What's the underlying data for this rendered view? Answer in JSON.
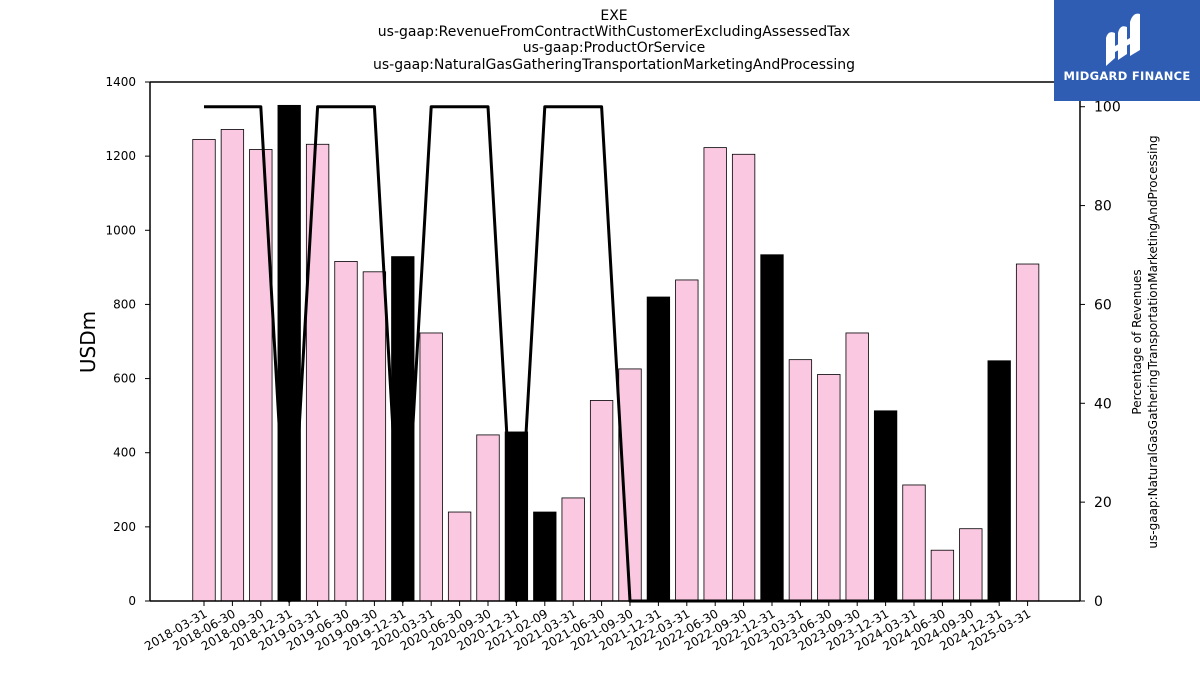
{
  "logo": {
    "text": "MIDGARD FINANCE",
    "color": "#2e5db3"
  },
  "chart_data": {
    "type": "bar",
    "title_lines": [
      "EXE",
      "us-gaap:RevenueFromContractWithCustomerExcludingAssessedTax",
      "us-gaap:ProductOrService",
      "us-gaap:NaturalGasGatheringTransportationMarketingAndProcessing"
    ],
    "ylabel": "USDm",
    "ylabel_right_lines": [
      "Percentage of Revenues",
      "us-gaap:NaturalGasGatheringTransportationMarketingAndProcessing"
    ],
    "ylim": [
      0,
      1400
    ],
    "y_ticks": [
      0,
      200,
      400,
      600,
      800,
      1000,
      1200,
      1400
    ],
    "ylim_right": [
      0,
      105
    ],
    "y_ticks_right": [
      0,
      20,
      40,
      60,
      80,
      100
    ],
    "categories": [
      "2018-03-31",
      "2018-06-30",
      "2018-09-30",
      "2018-12-31",
      "2019-03-31",
      "2019-06-30",
      "2019-09-30",
      "2019-12-31",
      "2020-03-31",
      "2020-06-30",
      "2020-09-30",
      "2020-12-31",
      "2021-02-09",
      "2021-03-31",
      "2021-06-30",
      "2021-09-30",
      "2021-12-31",
      "2022-03-31",
      "2022-06-30",
      "2022-09-30",
      "2022-12-31",
      "2023-03-31",
      "2023-06-30",
      "2023-09-30",
      "2023-12-31",
      "2024-03-31",
      "2024-06-30",
      "2024-09-30",
      "2024-12-31",
      "2025-03-31"
    ],
    "series": [
      {
        "type": "bar",
        "values": [
          1245,
          1272,
          1218,
          1337,
          1232,
          916,
          888,
          929,
          723,
          240,
          448,
          456,
          240,
          278,
          541,
          626,
          820,
          866,
          1223,
          1205,
          934,
          651,
          611,
          723,
          513,
          313,
          137,
          195,
          648,
          909
        ],
        "colors": [
          "#fbc8e2",
          "#fbc8e2",
          "#fbc8e2",
          "#000000",
          "#fbc8e2",
          "#fbc8e2",
          "#fbc8e2",
          "#000000",
          "#fbc8e2",
          "#fbc8e2",
          "#fbc8e2",
          "#000000",
          "#000000",
          "#fbc8e2",
          "#fbc8e2",
          "#fbc8e2",
          "#000000",
          "#fbc8e2",
          "#fbc8e2",
          "#fbc8e2",
          "#000000",
          "#fbc8e2",
          "#fbc8e2",
          "#fbc8e2",
          "#000000",
          "#fbc8e2",
          "#fbc8e2",
          "#fbc8e2",
          "#000000",
          "#fbc8e2"
        ]
      },
      {
        "type": "line",
        "axis": "right",
        "color": "#000000",
        "values": [
          100,
          100,
          100,
          0,
          100,
          100,
          100,
          0,
          100,
          100,
          100,
          0,
          100,
          100,
          100,
          0,
          0,
          0,
          0,
          0,
          0,
          0,
          0,
          0,
          0,
          0,
          0,
          0,
          0,
          null
        ]
      }
    ],
    "grid": false,
    "legend": "none"
  }
}
